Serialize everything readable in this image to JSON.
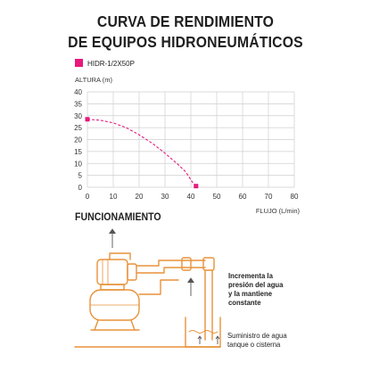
{
  "title_line1": "CURVA DE RENDIMIENTO",
  "title_line2": "DE EQUIPOS HIDRONEUMÁTICOS",
  "section_heading": "FUNCIONAMIENTO",
  "notes": {
    "pressure": [
      "Incrementa la",
      "presión del agua",
      "y la mantiene",
      "constante"
    ],
    "supply": [
      "Suministro de agua",
      "tanque o cisterna"
    ]
  },
  "colors": {
    "series": "#e8187c",
    "diagram": "#e8923a",
    "grid": "#cfcfcf",
    "axis_text": "#333333"
  },
  "chart_data": {
    "type": "line",
    "title": "CURVA DE RENDIMIENTO DE EQUIPOS HIDRONEUMÁTICOS",
    "xlabel": "FLUJO (L/min)",
    "ylabel": "ALTURA (m)",
    "xlim": [
      0,
      80
    ],
    "ylim": [
      0,
      40
    ],
    "xticks": [
      0,
      10,
      20,
      30,
      40,
      50,
      60,
      70,
      80
    ],
    "yticks": [
      0,
      5,
      10,
      15,
      20,
      25,
      30,
      35,
      40
    ],
    "grid": true,
    "legend_position": "top-left",
    "series": [
      {
        "name": "HIDR-1/2X50P",
        "color": "#e8187c",
        "points": [
          [
            0,
            28.5
          ],
          [
            5,
            28.1
          ],
          [
            10,
            27
          ],
          [
            15,
            25
          ],
          [
            20,
            22
          ],
          [
            25,
            18.5
          ],
          [
            30,
            14.3
          ],
          [
            35,
            9.6
          ],
          [
            38,
            6.5
          ],
          [
            41,
            1.5
          ],
          [
            42,
            0.5
          ]
        ]
      }
    ]
  }
}
